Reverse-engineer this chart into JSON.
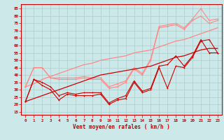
{
  "x": [
    0,
    1,
    2,
    3,
    4,
    5,
    6,
    7,
    8,
    9,
    10,
    11,
    12,
    13,
    14,
    15,
    16,
    17,
    18,
    19,
    20,
    21,
    22,
    23
  ],
  "line1_dark": [
    22,
    37,
    33,
    30,
    23,
    27,
    26,
    26,
    26,
    27,
    20,
    23,
    24,
    35,
    28,
    30,
    45,
    31,
    46,
    45,
    52,
    63,
    64,
    55
  ],
  "line2_dark": [
    22,
    37,
    35,
    32,
    26,
    28,
    27,
    28,
    28,
    28,
    21,
    24,
    26,
    36,
    29,
    31,
    46,
    47,
    53,
    46,
    53,
    64,
    55,
    55
  ],
  "line3_light": [
    32,
    45,
    45,
    38,
    37,
    37,
    37,
    38,
    37,
    37,
    31,
    32,
    35,
    44,
    40,
    50,
    72,
    73,
    74,
    71,
    77,
    80,
    75,
    77
  ],
  "line4_light": [
    32,
    45,
    45,
    38,
    38,
    38,
    38,
    39,
    38,
    38,
    32,
    34,
    36,
    45,
    41,
    51,
    73,
    74,
    75,
    72,
    78,
    85,
    77,
    78
  ],
  "line5_straight_dark": [
    22,
    24,
    26,
    28,
    30,
    32,
    34,
    36,
    38,
    40,
    41,
    42,
    43,
    44,
    45,
    46,
    48,
    50,
    52,
    53,
    55,
    57,
    58,
    58
  ],
  "line6_straight_light": [
    32,
    34,
    37,
    39,
    41,
    43,
    45,
    47,
    48,
    50,
    51,
    52,
    53,
    55,
    56,
    57,
    59,
    61,
    63,
    64,
    66,
    68,
    70,
    72
  ],
  "background_color": "#cce8e8",
  "grid_color": "#aacece",
  "line_dark_color": "#cc0000",
  "line_light_color": "#ff8888",
  "xlabel": "Vent moyen/en rafales ( km/h )",
  "ylabel_ticks": [
    15,
    20,
    25,
    30,
    35,
    40,
    45,
    50,
    55,
    60,
    65,
    70,
    75,
    80,
    85
  ],
  "ylim": [
    13,
    88
  ],
  "xlim": [
    -0.5,
    23.5
  ]
}
